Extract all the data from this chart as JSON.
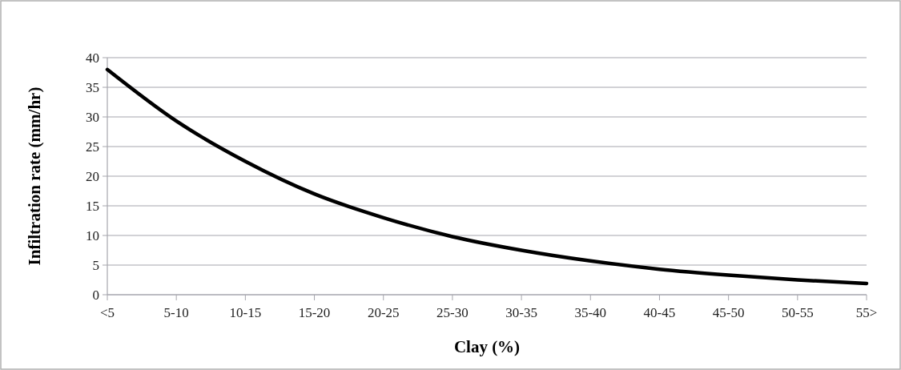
{
  "chart_data": {
    "type": "line",
    "xlabel": "Clay (%)",
    "ylabel": "Infiltration rate (mm/hr)",
    "categories": [
      "<5",
      "5-10",
      "10-15",
      "15-20",
      "20-25",
      "25-30",
      "30-35",
      "35-40",
      "40-45",
      "45-50",
      "50-55",
      "55>"
    ],
    "series": [
      {
        "color": "#000000",
        "values": [
          38,
          29.3,
          22.5,
          17,
          13,
          9.8,
          7.5,
          5.7,
          4.3,
          3.3,
          2.5,
          1.9
        ]
      }
    ],
    "ylim": [
      0,
      40
    ],
    "yticks": [
      0,
      5,
      10,
      15,
      20,
      25,
      30,
      35,
      40
    ],
    "grid": "y",
    "marker": "none",
    "line_style": "solid"
  }
}
